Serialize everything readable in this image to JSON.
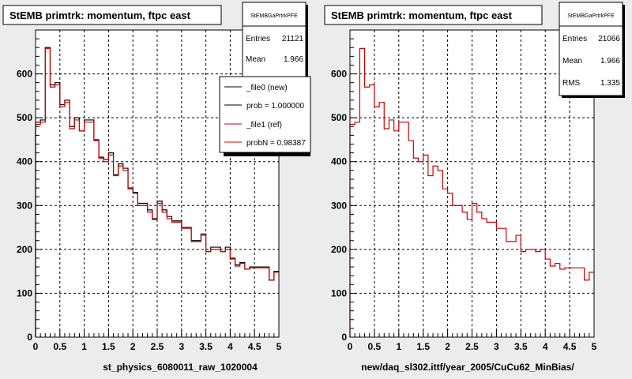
{
  "panels": [
    {
      "title": "StEMB primtrk: momentum, ftpc east",
      "xlabel": "st_physics_6080011_raw_1020004",
      "stats": {
        "name": "StEMBGaPrtrkPFE",
        "rows": [
          {
            "label": "Entries",
            "value": "21121"
          },
          {
            "label": "Mean",
            "value": "1.966"
          }
        ]
      },
      "legend": {
        "entries": [
          {
            "label": "_file0 (new)",
            "color": "#000000"
          },
          {
            "label": "prob = 1.000000",
            "color": "#000000"
          },
          {
            "label": "_file1 (ref)",
            "color": "#cc0000"
          },
          {
            "label": "probN = 0.98387",
            "color": "#cc0000"
          }
        ]
      }
    },
    {
      "title": "StEMB primtrk: momentum, ftpc east",
      "xlabel": "new/daq_sl302.ittf/year_2005/CuCu62_MinBias/",
      "stats": {
        "name": "StEMBGaPrtrkPFE",
        "rows": [
          {
            "label": "Entries",
            "value": "21066"
          },
          {
            "label": "Mean",
            "value": "1.966"
          },
          {
            "label": "RMS",
            "value": "1.335"
          }
        ]
      }
    }
  ],
  "colors": {
    "new": "#000000",
    "ref": "#cc0000",
    "pad": "#ffffff",
    "frame": "#ececec"
  },
  "chart_data": [
    {
      "type": "histogram",
      "title": "StEMB primtrk: momentum, ftpc east",
      "xlabel": "st_physics_6080011_raw_1020004",
      "ylabel": "",
      "xlim": [
        0,
        5
      ],
      "ylim": [
        0,
        700
      ],
      "grid": true,
      "xticks": [
        "0",
        "0.5",
        "1",
        "1.5",
        "2",
        "2.5",
        "3",
        "3.5",
        "4",
        "4.5",
        "5"
      ],
      "yticks": [
        "0",
        "100",
        "200",
        "300",
        "400",
        "500",
        "600"
      ],
      "bin_width": 0.1,
      "series": [
        {
          "name": "_file0 (new)",
          "values": [
            490,
            495,
            660,
            575,
            580,
            530,
            540,
            480,
            500,
            470,
            495,
            495,
            450,
            410,
            405,
            420,
            370,
            395,
            385,
            340,
            330,
            305,
            305,
            290,
            270,
            310,
            290,
            275,
            265,
            265,
            250,
            250,
            220,
            220,
            235,
            195,
            205,
            205,
            195,
            205,
            180,
            165,
            170,
            155,
            160,
            160,
            160,
            160,
            130,
            150
          ]
        },
        {
          "name": "_file1 (ref)",
          "values": [
            485,
            490,
            658,
            570,
            575,
            525,
            535,
            475,
            495,
            470,
            490,
            490,
            448,
            408,
            400,
            415,
            368,
            390,
            380,
            338,
            328,
            300,
            300,
            285,
            268,
            305,
            285,
            270,
            262,
            262,
            248,
            248,
            218,
            218,
            232,
            195,
            200,
            200,
            195,
            200,
            178,
            162,
            168,
            155,
            158,
            158,
            158,
            158,
            130,
            148
          ]
        }
      ]
    },
    {
      "type": "histogram",
      "title": "StEMB primtrk: momentum, ftpc east",
      "xlabel": "new/daq_sl302.ittf/year_2005/CuCu62_MinBias/",
      "ylabel": "",
      "xlim": [
        0,
        5
      ],
      "ylim": [
        0,
        700
      ],
      "grid": true,
      "xticks": [
        "0",
        "0.5",
        "1",
        "1.5",
        "2",
        "2.5",
        "3",
        "3.5",
        "4",
        "4.5",
        "5"
      ],
      "yticks": [
        "0",
        "100",
        "200",
        "300",
        "400",
        "500",
        "600"
      ],
      "bin_width": 0.1,
      "series": [
        {
          "name": "_file1 (ref)",
          "values": [
            485,
            490,
            658,
            570,
            575,
            525,
            535,
            475,
            495,
            470,
            490,
            490,
            448,
            408,
            400,
            415,
            368,
            390,
            380,
            338,
            328,
            300,
            300,
            285,
            268,
            305,
            285,
            270,
            262,
            262,
            248,
            248,
            218,
            218,
            232,
            195,
            200,
            200,
            195,
            200,
            178,
            162,
            168,
            155,
            158,
            158,
            158,
            158,
            130,
            148
          ]
        }
      ]
    }
  ]
}
